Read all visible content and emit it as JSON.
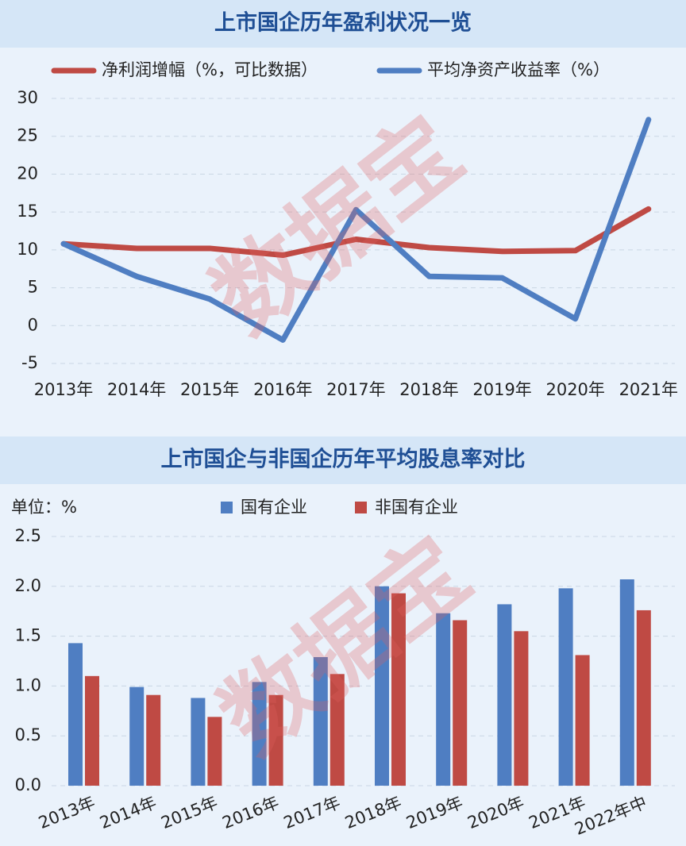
{
  "watermark": "数据宝",
  "chart_data": [
    {
      "type": "line",
      "title": "上市国企历年盈利状况一览",
      "categories": [
        "2013年",
        "2014年",
        "2015年",
        "2016年",
        "2017年",
        "2018年",
        "2019年",
        "2020年",
        "2021年"
      ],
      "series": [
        {
          "name": "净利润增幅（%，可比数据）",
          "color": "#bf4a44",
          "values": [
            10.8,
            10.2,
            10.2,
            9.3,
            11.4,
            10.3,
            9.8,
            9.9,
            15.4
          ]
        },
        {
          "name": "平均净资产收益率（%）",
          "color": "#4f7ec2",
          "values": [
            10.8,
            6.5,
            3.5,
            -1.9,
            15.3,
            6.5,
            6.3,
            0.9,
            27.2
          ]
        }
      ],
      "ylim": [
        -5,
        30
      ],
      "yticks": [
        -5,
        0,
        5,
        10,
        15,
        20,
        25,
        30
      ],
      "grid": true
    },
    {
      "type": "bar",
      "title": "上市国企与非国企历年平均股息率对比",
      "unit_label": "单位：%",
      "categories": [
        "2013年",
        "2014年",
        "2015年",
        "2016年",
        "2017年",
        "2018年",
        "2019年",
        "2020年",
        "2021年",
        "2022年中"
      ],
      "series": [
        {
          "name": "国有企业",
          "color": "#4f7ec2",
          "values": [
            1.43,
            0.99,
            0.88,
            1.04,
            1.29,
            2.0,
            1.73,
            1.82,
            1.98,
            2.07
          ]
        },
        {
          "name": "非国有企业",
          "color": "#bf4a44",
          "values": [
            1.1,
            0.91,
            0.69,
            0.91,
            1.12,
            1.93,
            1.66,
            1.55,
            1.31,
            1.76
          ]
        }
      ],
      "ylim": [
        0,
        2.5
      ],
      "yticks": [
        {
          "value": 0,
          "label": "0.0"
        },
        0.5,
        {
          "value": 1,
          "label": "1.0"
        },
        1.5,
        {
          "value": 2,
          "label": "2.0"
        },
        2.5
      ],
      "grid": true
    }
  ]
}
